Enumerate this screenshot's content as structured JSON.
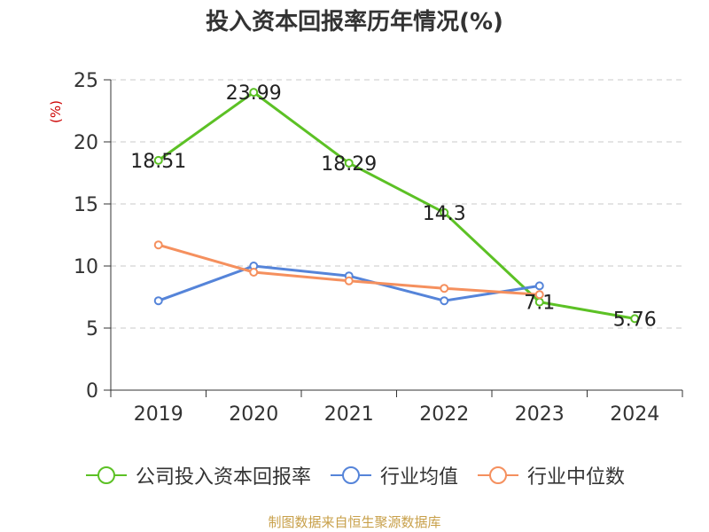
{
  "chart_data": {
    "type": "line",
    "title": "投入资本回报率历年情况(%)",
    "ylabel": "(%)",
    "xlabel": "",
    "categories": [
      "2019",
      "2020",
      "2021",
      "2022",
      "2023",
      "2024"
    ],
    "ylim": [
      0,
      25
    ],
    "yticks": [
      0,
      5,
      10,
      15,
      20,
      25
    ],
    "grid": true,
    "legend_position": "bottom",
    "series": [
      {
        "name": "公司投入资本回报率",
        "color": "#5cc125",
        "values": [
          18.51,
          23.99,
          18.29,
          14.3,
          7.1,
          5.76
        ],
        "labels": [
          "18.51",
          "23.99",
          "18.29",
          "14.3",
          "7.1",
          "5.76"
        ]
      },
      {
        "name": "行业均值",
        "color": "#5584d9",
        "values": [
          7.2,
          10.0,
          9.2,
          7.2,
          8.4,
          null
        ]
      },
      {
        "name": "行业中位数",
        "color": "#f5905e",
        "values": [
          11.7,
          9.5,
          8.8,
          8.2,
          7.7,
          null
        ]
      }
    ]
  },
  "source": "制图数据来自恒生聚源数据库"
}
